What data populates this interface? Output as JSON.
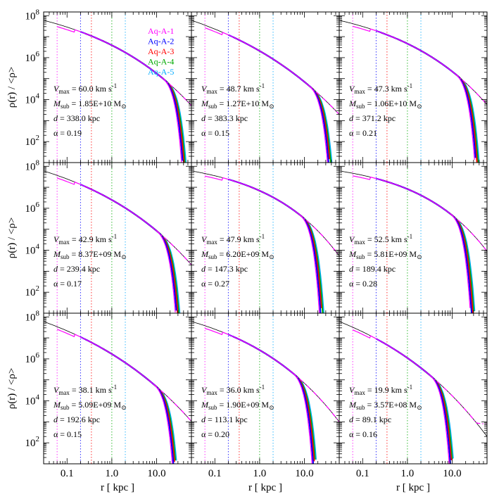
{
  "chart_data": {
    "type": "line",
    "layout": "3x3 grid of panels sharing axes",
    "x_scale": "log",
    "y_scale": "log",
    "xlim": [
      0.03,
      60
    ],
    "ylim": [
      10,
      150000000
    ],
    "xlabel": "r [ kpc ]",
    "ylabel": "ρ(r) / <ρ>",
    "x_tick_labels": [
      "0.1",
      "1.0",
      "10.0"
    ],
    "y_tick_labels": [
      {
        "base": "10",
        "exp": "2"
      },
      {
        "base": "10",
        "exp": "4"
      },
      {
        "base": "10",
        "exp": "6"
      },
      {
        "base": "10",
        "exp": "8"
      }
    ],
    "legend": {
      "position": "top-right of first panel",
      "entries": [
        {
          "name": "Aq-A-1",
          "color": "#ff00ff"
        },
        {
          "name": "Aq-A-2",
          "color": "#0000ff"
        },
        {
          "name": "Aq-A-3",
          "color": "#ff0000"
        },
        {
          "name": "Aq-A-4",
          "color": "#00aa00"
        },
        {
          "name": "Aq-A-5",
          "color": "#00aaff"
        }
      ]
    },
    "resolution_lines_kpc": [
      0.06,
      0.2,
      0.35,
      1.0,
      2.0
    ],
    "panels": [
      {
        "vmax": "60.0",
        "msub": "1.85E+10",
        "d": "338.0",
        "alpha": "0.19",
        "r_cut": 30,
        "upturn": 1.0
      },
      {
        "vmax": "48.7",
        "msub": "1.27E+10",
        "d": "383.3",
        "alpha": "0.15",
        "r_cut": 28,
        "upturn": 1.5
      },
      {
        "vmax": "47.3",
        "msub": "1.06E+10",
        "d": "371.2",
        "alpha": "0.21",
        "r_cut": 26,
        "upturn": 1.5
      },
      {
        "vmax": "42.9",
        "msub": "8.37E+09",
        "d": "239.4",
        "alpha": "0.17",
        "r_cut": 22,
        "upturn": 3.0
      },
      {
        "vmax": "47.9",
        "msub": "6.20E+09",
        "d": "147.3",
        "alpha": "0.27",
        "r_cut": 17,
        "upturn": 3.0
      },
      {
        "vmax": "52.5",
        "msub": "5.81E+09",
        "d": "189.4",
        "alpha": "0.28",
        "r_cut": 20,
        "upturn": 3.0
      },
      {
        "vmax": "38.1",
        "msub": "5.09E+09",
        "d": "192.6",
        "alpha": "0.15",
        "r_cut": 19,
        "upturn": 3.0
      },
      {
        "vmax": "36.0",
        "msub": "1.90E+09",
        "d": "113.1",
        "alpha": "0.20",
        "r_cut": 12,
        "upturn": 3.0
      },
      {
        "vmax": "19.9",
        "msub": "3.57E+08",
        "d": "89.1",
        "alpha": "0.16",
        "r_cut": 7,
        "upturn": 3.0
      }
    ]
  }
}
